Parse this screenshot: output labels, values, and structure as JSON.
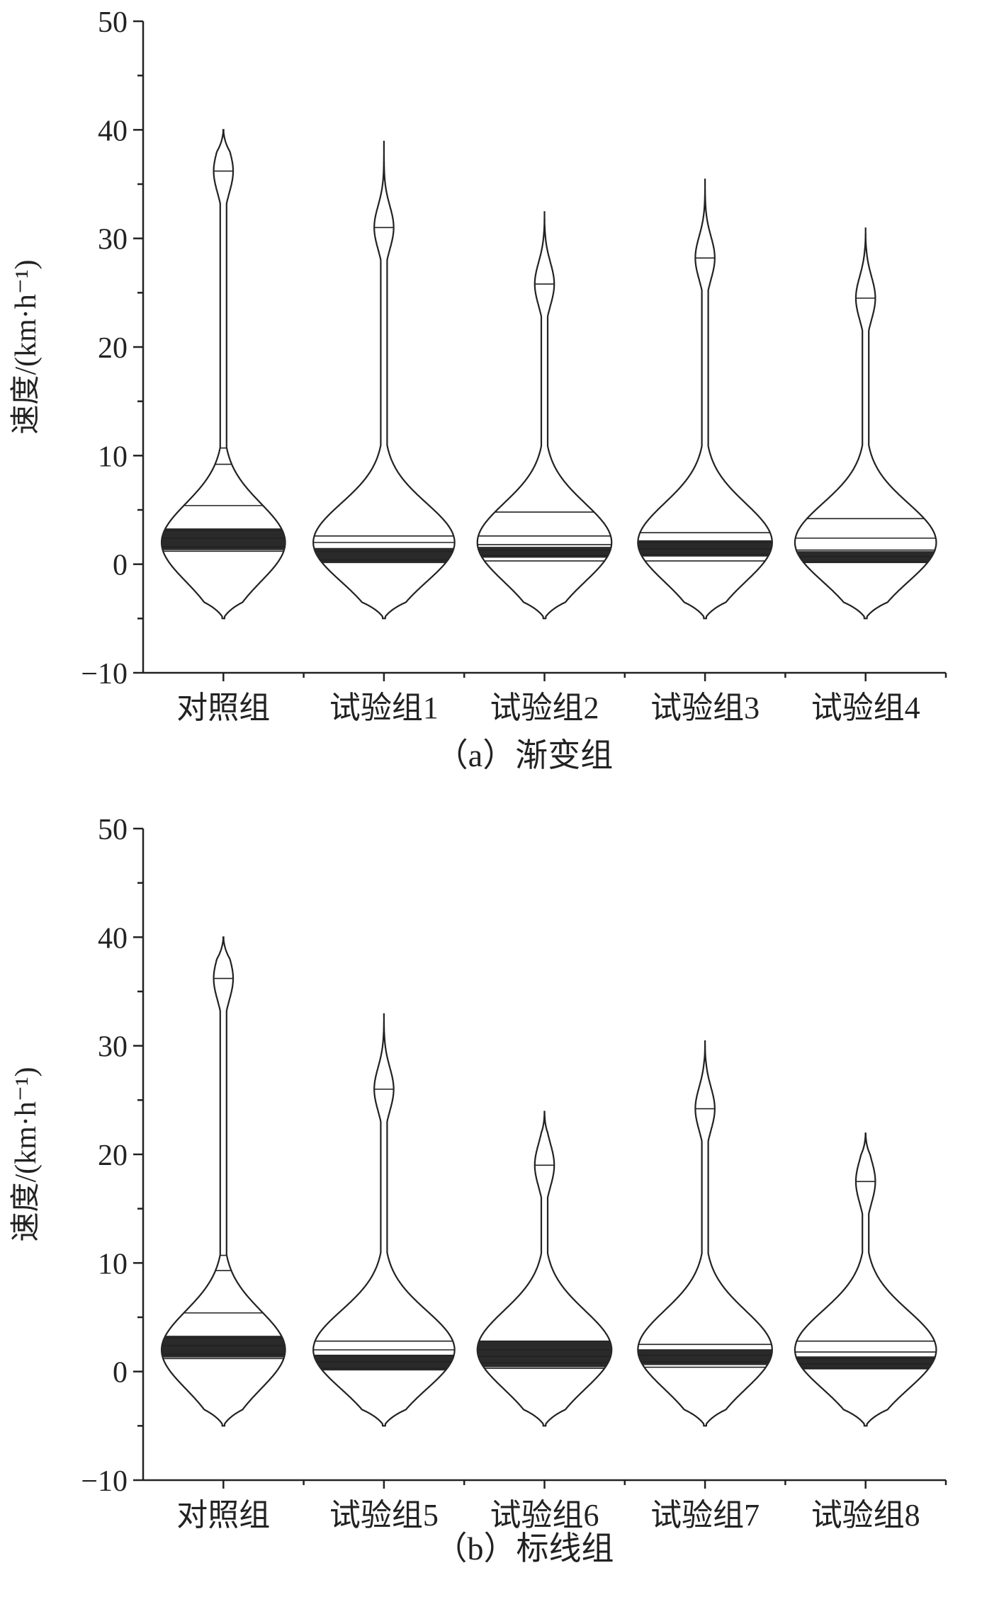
{
  "chart_data": [
    {
      "type": "violin",
      "caption": "（a）渐变组",
      "ylabel": "速度/(km·h⁻¹)",
      "ylim": [
        -10,
        50
      ],
      "yticks": [
        -10,
        0,
        10,
        20,
        30,
        40,
        50
      ],
      "categories": [
        "对照组",
        "试验组1",
        "试验组2",
        "试验组3",
        "试验组4"
      ],
      "series": [
        {
          "min": -5,
          "max": 40,
          "upper_mode": 36.2,
          "main_width": 3.5,
          "lines": [
            1.2,
            1.6,
            2.4,
            3.1,
            5.4,
            9.2,
            10.7
          ],
          "dense_band": [
            1.3,
            3.3
          ]
        },
        {
          "min": -5,
          "max": 39,
          "upper_mode": 31.0,
          "main_width": 4.0,
          "lines": [
            0.4,
            1.2,
            2.0,
            2.6
          ],
          "dense_band": [
            0.1,
            1.5
          ]
        },
        {
          "min": -5,
          "max": 32.5,
          "upper_mode": 25.8,
          "main_width": 3.8,
          "lines": [
            0.3,
            0.8,
            1.3,
            1.8,
            2.6,
            4.8
          ],
          "dense_band": [
            0.6,
            1.6
          ]
        },
        {
          "min": -5,
          "max": 35.5,
          "upper_mode": 28.2,
          "main_width": 3.8,
          "lines": [
            0.3,
            0.9,
            1.4,
            2.0,
            2.9
          ],
          "dense_band": [
            0.7,
            2.2
          ]
        },
        {
          "min": -5,
          "max": 31,
          "upper_mode": 24.5,
          "main_width": 4.0,
          "lines": [
            0.2,
            0.7,
            1.3,
            2.4,
            4.2
          ],
          "dense_band": [
            0.1,
            1.2
          ]
        }
      ]
    },
    {
      "type": "violin",
      "caption": "（b）标线组",
      "ylabel": "速度/(km·h⁻¹)",
      "ylim": [
        -10,
        50
      ],
      "yticks": [
        -10,
        0,
        10,
        20,
        30,
        40,
        50
      ],
      "categories": [
        "对照组",
        "试验组5",
        "试验组6",
        "试验组7",
        "试验组8"
      ],
      "series": [
        {
          "min": -5,
          "max": 40,
          "upper_mode": 36.2,
          "main_width": 3.5,
          "lines": [
            1.2,
            1.6,
            2.4,
            3.1,
            5.4,
            9.3,
            10.7
          ],
          "dense_band": [
            1.3,
            3.3
          ]
        },
        {
          "min": -5,
          "max": 33,
          "upper_mode": 26.0,
          "main_width": 4.0,
          "lines": [
            0.3,
            0.9,
            1.5,
            2.0,
            2.8
          ],
          "dense_band": [
            0.1,
            1.5
          ]
        },
        {
          "min": -5,
          "max": 24,
          "upper_mode": 19.0,
          "main_width": 3.8,
          "lines": [
            0.3,
            0.8,
            1.4,
            2.0,
            2.8
          ],
          "dense_band": [
            0.4,
            2.8
          ]
        },
        {
          "min": -5,
          "max": 30.5,
          "upper_mode": 24.2,
          "main_width": 3.8,
          "lines": [
            0.4,
            0.9,
            1.5,
            2.0,
            2.5
          ],
          "dense_band": [
            0.6,
            2.0
          ]
        },
        {
          "min": -5,
          "max": 22,
          "upper_mode": 17.5,
          "main_width": 4.0,
          "lines": [
            0.3,
            0.7,
            1.2,
            1.8,
            2.8
          ],
          "dense_band": [
            0.2,
            1.4
          ]
        }
      ]
    }
  ]
}
